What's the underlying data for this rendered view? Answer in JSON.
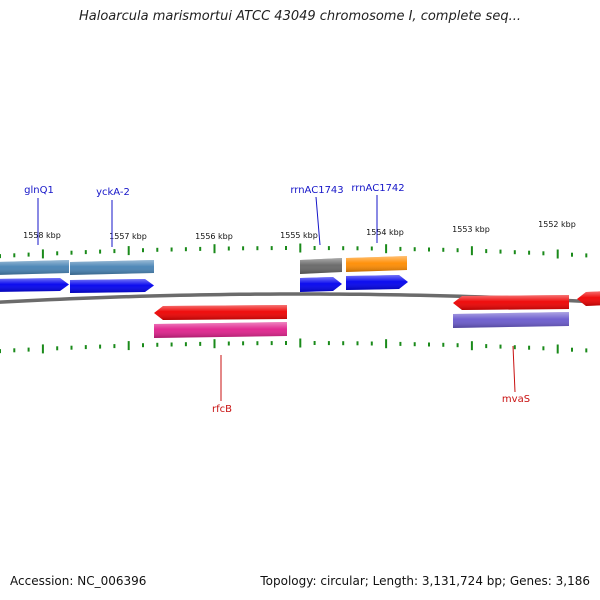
{
  "title": "Haloarcula marismortui ATCC 43049 chromosome I, complete seq...",
  "footer": {
    "accession": "Accession: NC_006396",
    "topology": "Topology: circular; Length: 3,131,724 bp; Genes: 3,186"
  },
  "colors": {
    "backbone": "#6b6b6b",
    "ticks": "#1a8a1a",
    "forward_label": "#1515c8",
    "reverse_label": "#c81010"
  },
  "scale_labels": [
    "1558 kbp",
    "1557 kbp",
    "1556 kbp",
    "1555 kbp",
    "1554 kbp",
    "1553 kbp",
    "1552 kbp"
  ],
  "gene_labels": [
    {
      "text": "glnQ1",
      "strand": "forward"
    },
    {
      "text": "yckA-2",
      "strand": "forward"
    },
    {
      "text": "rrnAC1743",
      "strand": "forward"
    },
    {
      "text": "rrnAC1742",
      "strand": "forward"
    },
    {
      "text": "rfcB",
      "strand": "reverse"
    },
    {
      "text": "mvaS",
      "strand": "reverse"
    }
  ],
  "features": [
    {
      "name": "forward-cds-bar-left",
      "color": "#4682b4"
    },
    {
      "name": "forward-cds-bar-yckA",
      "color": "#4682b4"
    },
    {
      "name": "forward-gene-arrow-left",
      "color": "#0000ee"
    },
    {
      "name": "forward-gene-arrow-yckA",
      "color": "#0000ee"
    },
    {
      "name": "forward-cds-bar-rrnAC1743",
      "color": "#666666"
    },
    {
      "name": "forward-cds-bar-rrnAC1742",
      "color": "#ff8c00"
    },
    {
      "name": "forward-gene-arrow-rrnAC1743",
      "color": "#0000ee"
    },
    {
      "name": "forward-gene-arrow-rrnAC1742",
      "color": "#0000ee"
    },
    {
      "name": "reverse-gene-arrow-rfcB",
      "color": "#ee0000"
    },
    {
      "name": "reverse-cds-bar-rfcB",
      "color": "#e0208c"
    },
    {
      "name": "reverse-gene-arrow-mvaS",
      "color": "#ee0000"
    },
    {
      "name": "reverse-cds-bar-mvaS",
      "color": "#6a5acd"
    },
    {
      "name": "reverse-gene-arrow-right-edge",
      "color": "#ee0000"
    }
  ]
}
